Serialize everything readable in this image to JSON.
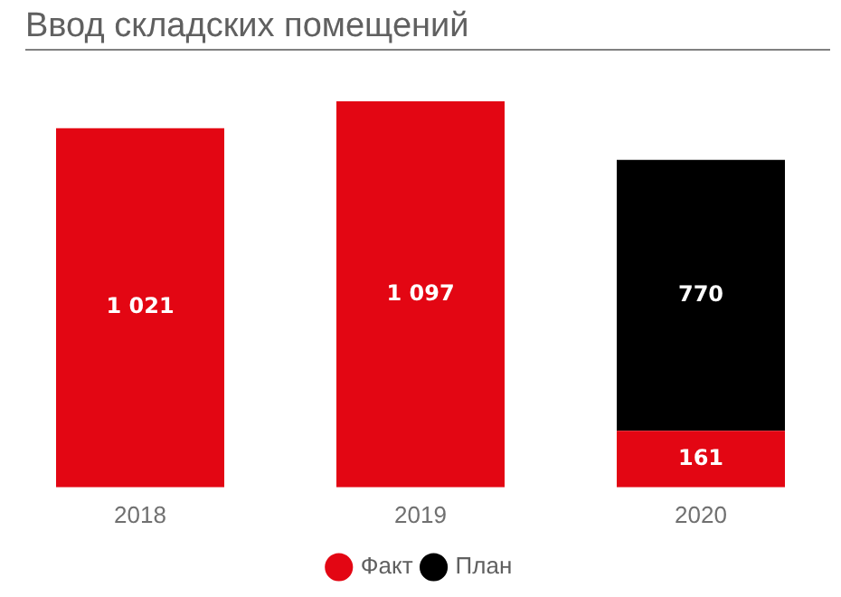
{
  "chart_data": {
    "type": "bar",
    "title": "Ввод складских помещений",
    "categories": [
      "2018",
      "2019",
      "2020"
    ],
    "stacked": true,
    "legend": "bottom",
    "grid": false,
    "series": [
      {
        "name": "Факт",
        "color": "#e30613",
        "values": [
          1021,
          1097,
          161
        ],
        "value_labels": [
          "1 021",
          "1 097",
          "161"
        ]
      },
      {
        "name": "План",
        "color": "#000000",
        "values": [
          null,
          null,
          770
        ],
        "value_labels": [
          null,
          null,
          "770"
        ]
      }
    ]
  }
}
